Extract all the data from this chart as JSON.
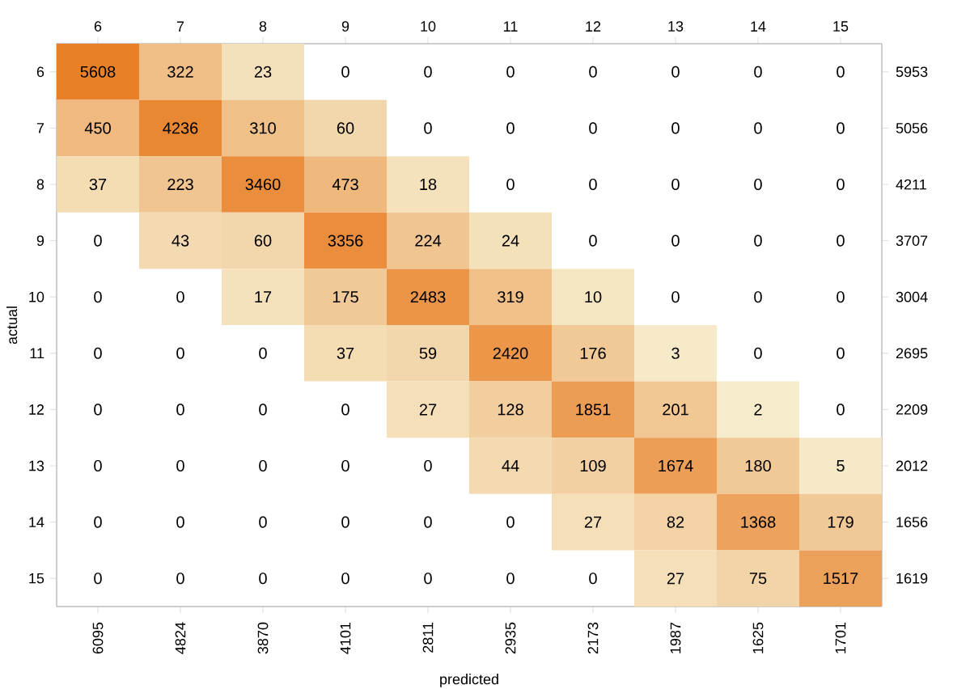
{
  "chart_data": {
    "type": "heatmap",
    "xlabel": "predicted",
    "ylabel": "actual",
    "categories": [
      "6",
      "7",
      "8",
      "9",
      "10",
      "11",
      "12",
      "13",
      "14",
      "15"
    ],
    "y_categories": [
      "6",
      "7",
      "8",
      "9",
      "10",
      "11",
      "12",
      "13",
      "14",
      "15"
    ],
    "y2_categories": [
      "5953",
      "5056",
      "4211",
      "3707",
      "3004",
      "2695",
      "2209",
      "2012",
      "1656",
      "1619"
    ],
    "cells": [
      [
        5608,
        322,
        23,
        0,
        0,
        0,
        0,
        0,
        0,
        0
      ],
      [
        450,
        4236,
        310,
        60,
        0,
        0,
        0,
        0,
        0,
        0
      ],
      [
        37,
        223,
        3460,
        473,
        18,
        0,
        0,
        0,
        0,
        0
      ],
      [
        0,
        43,
        60,
        3356,
        224,
        24,
        0,
        0,
        0,
        0
      ],
      [
        0,
        0,
        17,
        175,
        2483,
        319,
        10,
        0,
        0,
        0
      ],
      [
        0,
        0,
        0,
        37,
        59,
        2420,
        176,
        3,
        0,
        0
      ],
      [
        0,
        0,
        0,
        0,
        27,
        128,
        1851,
        201,
        2,
        0
      ],
      [
        0,
        0,
        0,
        0,
        0,
        44,
        109,
        1674,
        180,
        5
      ],
      [
        0,
        0,
        0,
        0,
        0,
        0,
        27,
        82,
        1368,
        179
      ],
      [
        0,
        0,
        0,
        0,
        0,
        0,
        0,
        27,
        75,
        1517
      ]
    ],
    "data_labels": true,
    "annotations": [
      "6095",
      "4824",
      "3870",
      "4101",
      "2811",
      "2935",
      "2173",
      "1987",
      "1625",
      "1701"
    ]
  }
}
